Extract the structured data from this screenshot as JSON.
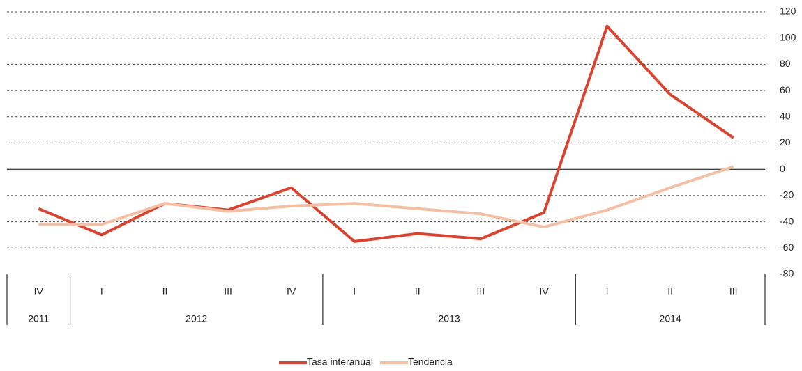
{
  "chart_data": {
    "type": "line",
    "categories": [
      "IV",
      "I",
      "II",
      "III",
      "IV",
      "I",
      "II",
      "III",
      "IV",
      "I",
      "II",
      "III"
    ],
    "groups": [
      {
        "label": "2011",
        "count": 1
      },
      {
        "label": "2012",
        "count": 4
      },
      {
        "label": "2013",
        "count": 4
      },
      {
        "label": "2014",
        "count": 3
      }
    ],
    "series": [
      {
        "name": "Tasa interanual",
        "color": "#d9432f",
        "values": [
          -30,
          -50,
          -26,
          -31,
          -14,
          -55,
          -49,
          -53,
          -33,
          109,
          57,
          24
        ]
      },
      {
        "name": "Tendencia",
        "color": "#f4bfa3",
        "values": [
          -42,
          -42,
          -26,
          -32,
          -28,
          -26,
          -30,
          -34,
          -44,
          -31,
          -14,
          2
        ]
      }
    ],
    "ylim": [
      -80,
      120
    ],
    "yticks": [
      -80,
      -60,
      -40,
      -20,
      0,
      20,
      40,
      60,
      80,
      100,
      120
    ],
    "grid": true,
    "y_axis_side": "right",
    "legend": "bottom"
  }
}
